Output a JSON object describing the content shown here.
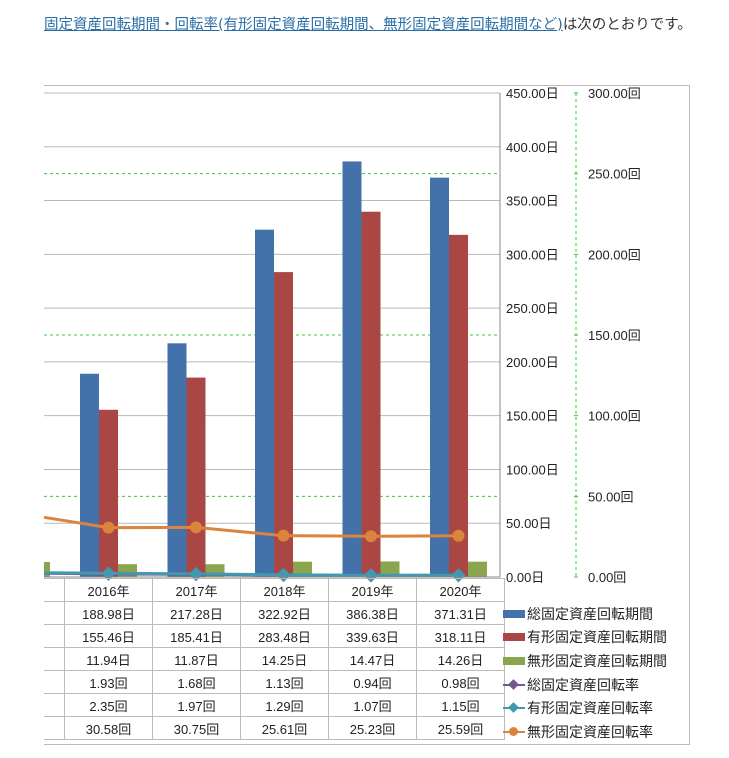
{
  "intro": {
    "link_text": "固定資産回転期間・回転率(有形固定資産回転期間、無形固定資産回転期間など)",
    "rest_text": "は次のとおりです。"
  },
  "chart_data": {
    "type": "bar",
    "categories": [
      "2016年",
      "2017年",
      "2018年",
      "2019年",
      "2020年"
    ],
    "series": [
      {
        "name": "総固定資産回転期間",
        "kind": "bar",
        "axis": "left",
        "unit": "日",
        "color": "#4372aa",
        "values": [
          188.98,
          217.28,
          322.92,
          386.38,
          371.31
        ],
        "labels": [
          "188.98日",
          "217.28日",
          "322.92日",
          "386.38日",
          "371.31日"
        ]
      },
      {
        "name": "有形固定資産回転期間",
        "kind": "bar",
        "axis": "left",
        "unit": "日",
        "color": "#aa4643",
        "values": [
          155.46,
          185.41,
          283.48,
          339.63,
          318.11
        ],
        "labels": [
          "155.46日",
          "185.41日",
          "283.48日",
          "339.63日",
          "318.11日"
        ]
      },
      {
        "name": "無形固定資産回転期間",
        "kind": "bar",
        "axis": "left",
        "unit": "日",
        "color": "#89a54e",
        "values": [
          11.94,
          11.87,
          14.25,
          14.47,
          14.26
        ],
        "labels": [
          "11.94日",
          "11.87日",
          "14.25日",
          "14.47日",
          "14.26日"
        ]
      },
      {
        "name": "総固定資産回転率",
        "kind": "line",
        "axis": "right",
        "unit": "回",
        "color": "#71588f",
        "values": [
          1.93,
          1.68,
          1.13,
          0.94,
          0.98
        ],
        "labels": [
          "1.93回",
          "1.68回",
          "1.13回",
          "0.94回",
          "0.98回"
        ]
      },
      {
        "name": "有形固定資産回転率",
        "kind": "line",
        "axis": "right",
        "unit": "回",
        "color": "#4198af",
        "values": [
          2.35,
          1.97,
          1.29,
          1.07,
          1.15
        ],
        "labels": [
          "2.35回",
          "1.97回",
          "1.29回",
          "1.07回",
          "1.15回"
        ]
      },
      {
        "name": "無形固定資産回転率",
        "kind": "line",
        "axis": "right",
        "unit": "回",
        "color": "#db843d",
        "values": [
          30.58,
          30.75,
          25.61,
          25.23,
          25.59
        ],
        "labels": [
          "30.58回",
          "30.75回",
          "25.61回",
          "25.23回",
          "25.59回"
        ]
      }
    ],
    "cropped_prior_category": {
      "bars": [
        0,
        0,
        14
      ],
      "lines": [
        2.3,
        2.6,
        37
      ]
    },
    "left_axis": {
      "min": 0,
      "max": 450,
      "step": 50,
      "ticks": [
        "0.00日",
        "50.00日",
        "100.00日",
        "150.00日",
        "200.00日",
        "250.00日",
        "300.00日",
        "350.00日",
        "400.00日",
        "450.00日"
      ]
    },
    "right_axis": {
      "min": 0,
      "max": 300,
      "step": 50,
      "ticks": [
        "0.00回",
        "50.00回",
        "100.00回",
        "150.00回",
        "200.00回",
        "250.00回",
        "300.00回"
      ]
    },
    "legend_placement": "right, beside data table",
    "grid": true
  }
}
